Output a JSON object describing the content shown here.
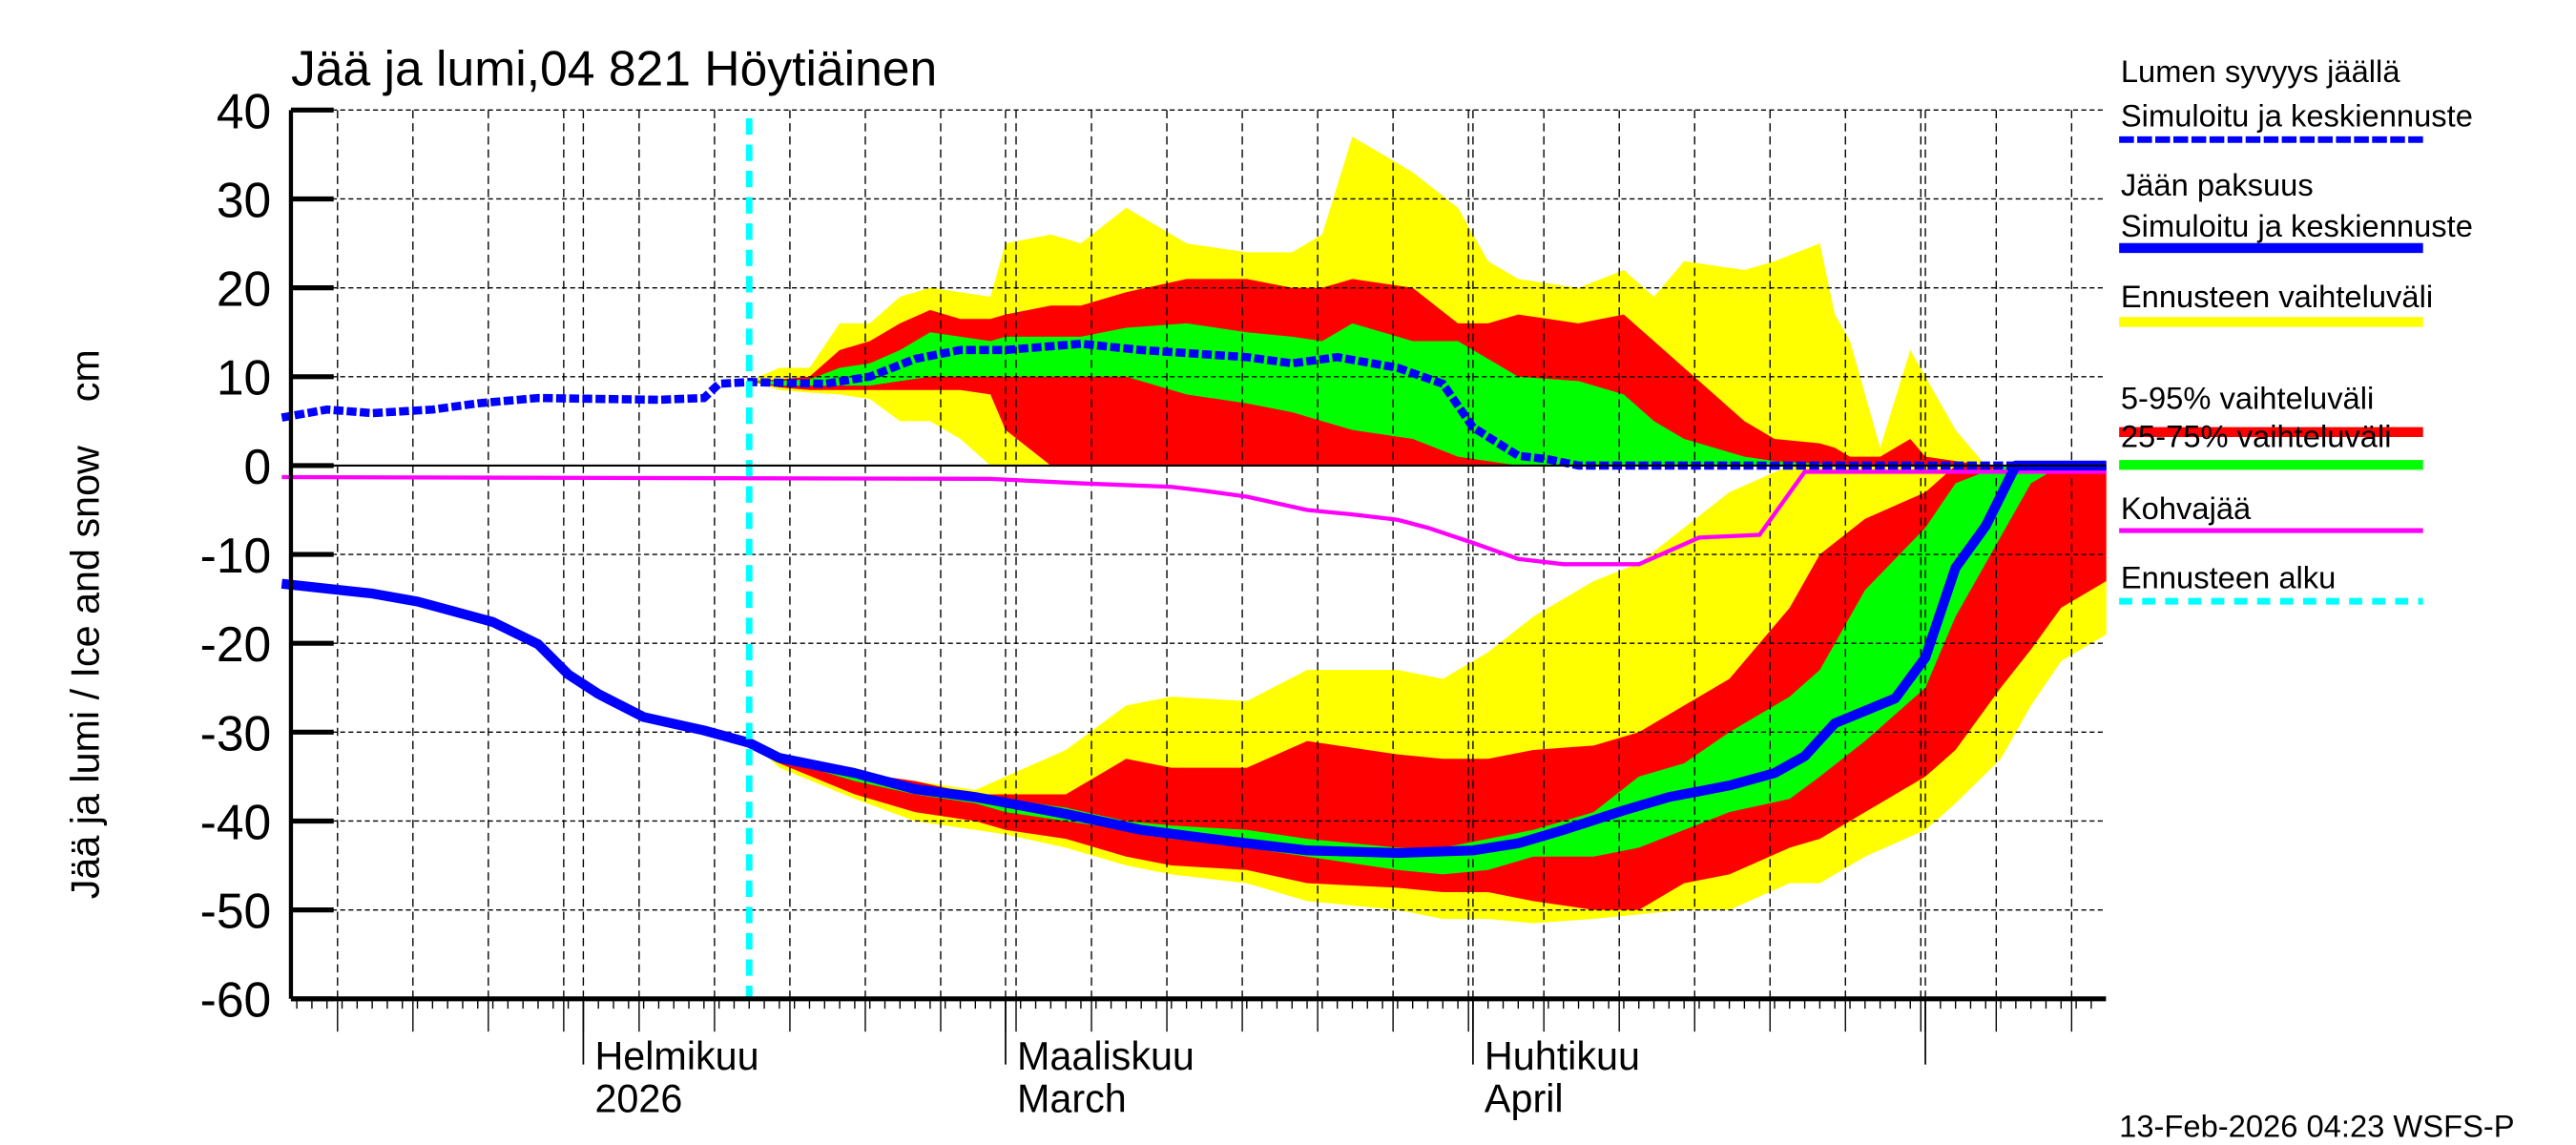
{
  "chart_data": {
    "type": "area",
    "title": "Jää ja lumi,04 821 Höytiäinen",
    "ylabel": "Jää ja lumi / Ice and snow    cm",
    "xlabel": "",
    "ylim": [
      -60,
      40
    ],
    "yticks": [
      "40",
      "30",
      "20",
      "10",
      "0",
      "-10",
      "-20",
      "-30",
      "-40",
      "-50",
      "-60"
    ],
    "xlim": [
      "2026-01-12",
      "2026-05-13"
    ],
    "x_month_labels": [
      {
        "date": "2026-02-01",
        "line1": "Helmikuu",
        "line2": "2026"
      },
      {
        "date": "2026-03-01",
        "line1": "Maaliskuu",
        "line2": "March"
      },
      {
        "date": "2026-04-01",
        "line1": "Huhtikuu",
        "line2": "April"
      }
    ],
    "grid": true,
    "legend_position": "right",
    "forecast_start": "2026-02-12",
    "colors": {
      "snow": "#0000ff",
      "ice": "#0000ff",
      "range": "#ffff00",
      "p5_95": "#ff0000",
      "p25_75": "#00ff00",
      "slush": "#ff00ff",
      "forecast_start": "#00ffff"
    },
    "snow_depth": {
      "name": "Lumen syvyys jäällä Simuloitu ja keskiennuste",
      "dates": [
        "2026-01-12",
        "2026-01-15",
        "2026-01-18",
        "2026-01-22",
        "2026-01-25",
        "2026-01-29",
        "2026-02-06",
        "2026-02-09",
        "2026-02-10",
        "2026-02-12",
        "2026-02-17",
        "2026-02-20",
        "2026-02-23",
        "2026-02-26",
        "2026-03-01",
        "2026-03-06",
        "2026-03-10",
        "2026-03-17",
        "2026-03-20",
        "2026-03-23",
        "2026-03-27",
        "2026-03-30",
        "2026-04-01",
        "2026-04-04",
        "2026-04-06",
        "2026-04-08",
        "2026-05-13"
      ],
      "values": [
        5.4,
        6.3,
        5.9,
        6.3,
        7.0,
        7.6,
        7.4,
        7.6,
        9.2,
        9.4,
        9.2,
        10,
        12,
        13,
        13,
        13.7,
        13,
        12.2,
        11.5,
        12.2,
        11,
        9.2,
        4.3,
        1.1,
        0.7,
        0,
        0
      ]
    },
    "ice_thickness": {
      "name": "Jään paksuus Simuloitu ja keskiennuste",
      "dates": [
        "2026-01-12",
        "2026-01-18",
        "2026-01-21",
        "2026-01-26",
        "2026-01-29",
        "2026-01-31",
        "2026-02-02",
        "2026-02-05",
        "2026-02-09",
        "2026-02-12",
        "2026-02-14",
        "2026-02-19",
        "2026-02-23",
        "2026-02-27",
        "2026-03-05",
        "2026-03-10",
        "2026-03-16",
        "2026-03-21",
        "2026-03-27",
        "2026-04-01",
        "2026-04-04",
        "2026-04-07",
        "2026-04-11",
        "2026-04-14",
        "2026-04-18",
        "2026-04-21",
        "2026-04-23",
        "2026-04-25",
        "2026-04-29",
        "2026-05-01",
        "2026-05-03",
        "2026-05-05",
        "2026-05-07",
        "2026-05-13"
      ],
      "values": [
        -13.3,
        -14.4,
        -15.3,
        -17.6,
        -20.1,
        -23.5,
        -25.7,
        -28.3,
        -29.8,
        -31.2,
        -32.9,
        -34.6,
        -36.4,
        -37.3,
        -39.2,
        -41,
        -42.3,
        -43.3,
        -43.6,
        -43.3,
        -42.5,
        -41,
        -38.8,
        -37.3,
        -36,
        -34.6,
        -32.7,
        -29,
        -26.2,
        -21.6,
        -11.5,
        -6.8,
        0,
        0
      ]
    },
    "slush_ice": {
      "name": "Kohvajää",
      "dates": [
        "2026-01-12",
        "2026-02-28",
        "2026-03-06",
        "2026-03-12",
        "2026-03-14",
        "2026-03-17",
        "2026-03-21",
        "2026-03-24",
        "2026-03-27",
        "2026-03-29",
        "2026-04-01",
        "2026-04-04",
        "2026-04-07",
        "2026-04-12",
        "2026-04-16",
        "2026-04-20",
        "2026-04-23",
        "2026-05-13"
      ],
      "values": [
        -1.3,
        -1.5,
        -2,
        -2.4,
        -2.8,
        -3.5,
        -5,
        -5.5,
        -6.1,
        -7,
        -8.7,
        -10.5,
        -11.1,
        -11.1,
        -8.1,
        -7.8,
        -0.7,
        -0.7
      ]
    },
    "snow_bands": {
      "dates": [
        "2026-02-12",
        "2026-02-14",
        "2026-02-16",
        "2026-02-18",
        "2026-02-20",
        "2026-02-22",
        "2026-02-24",
        "2026-02-26",
        "2026-02-28",
        "2026-03-01",
        "2026-03-04",
        "2026-03-06",
        "2026-03-09",
        "2026-03-13",
        "2026-03-17",
        "2026-03-20",
        "2026-03-22",
        "2026-03-24",
        "2026-03-28",
        "2026-03-31",
        "2026-04-02",
        "2026-04-04",
        "2026-04-08",
        "2026-04-11",
        "2026-04-13",
        "2026-04-15",
        "2026-04-19",
        "2026-04-21",
        "2026-04-24",
        "2026-04-25",
        "2026-04-26",
        "2026-04-28",
        "2026-04-30",
        "2026-05-01",
        "2026-05-03",
        "2026-05-05"
      ],
      "range_upper": [
        9.5,
        11,
        11,
        16,
        16,
        19,
        20,
        19.5,
        19,
        25,
        26,
        25,
        29,
        25,
        24,
        24,
        26,
        37,
        33,
        29,
        23,
        21,
        20,
        22,
        19,
        23,
        22,
        23,
        25,
        17,
        14,
        2,
        13,
        10,
        4,
        0
      ],
      "p95": [
        9.5,
        9.7,
        10,
        13,
        14,
        16,
        17.5,
        16.5,
        16.5,
        17,
        18,
        18,
        19.5,
        21,
        21,
        20,
        20,
        21,
        20,
        16,
        16,
        17,
        16,
        17,
        14,
        11,
        5,
        3,
        2.5,
        2,
        1,
        1,
        3,
        1,
        0.5,
        0
      ],
      "p75": [
        9.5,
        9.5,
        9.7,
        11,
        11.5,
        13,
        15,
        14.5,
        14,
        14.5,
        14.5,
        14.5,
        15.5,
        16,
        15,
        14.5,
        14,
        16,
        14,
        14,
        12,
        10,
        9.5,
        8,
        5,
        3,
        1,
        0.5,
        0.2,
        0,
        0,
        0,
        0,
        0,
        0,
        0
      ],
      "p25": [
        9.5,
        9,
        9,
        9,
        9,
        9.5,
        10,
        10,
        10,
        10,
        10,
        10,
        10,
        8,
        7,
        6,
        5,
        4,
        3,
        1,
        0.5,
        0,
        0,
        0,
        0,
        0,
        0,
        0,
        0,
        0,
        0,
        0,
        0,
        0,
        0,
        0
      ],
      "p5": [
        9.5,
        8.8,
        8.5,
        8.5,
        8.5,
        8.5,
        8.5,
        8.5,
        8,
        4,
        0,
        0,
        0,
        0,
        0,
        0,
        0,
        0,
        0,
        0,
        0,
        0,
        0,
        0,
        0,
        0,
        0,
        0,
        0,
        0,
        0,
        0,
        0,
        0,
        0,
        0
      ],
      "range_lower": [
        9.5,
        8.5,
        8.2,
        8,
        7.5,
        5,
        5,
        3,
        0,
        0,
        0,
        0,
        0,
        0,
        0,
        0,
        0,
        0,
        0,
        0,
        0,
        0,
        0,
        0,
        0,
        0,
        0,
        0,
        0,
        0,
        0,
        0,
        0,
        0,
        0,
        0
      ]
    },
    "ice_bands": {
      "dates": [
        "2026-02-12",
        "2026-02-14",
        "2026-02-19",
        "2026-02-23",
        "2026-02-27",
        "2026-03-01",
        "2026-03-05",
        "2026-03-09",
        "2026-03-12",
        "2026-03-17",
        "2026-03-21",
        "2026-03-27",
        "2026-03-30",
        "2026-04-02",
        "2026-04-05",
        "2026-04-09",
        "2026-04-12",
        "2026-04-15",
        "2026-04-18",
        "2026-04-22",
        "2026-04-24",
        "2026-04-27",
        "2026-05-01",
        "2026-05-03",
        "2026-05-06",
        "2026-05-08",
        "2026-05-10",
        "2026-05-13"
      ],
      "range_upper": [
        -31,
        -33,
        -34.5,
        -35.5,
        -36.5,
        -35,
        -32,
        -27,
        -26,
        -26.5,
        -23,
        -23,
        -24,
        -21,
        -17,
        -13,
        -11,
        -7,
        -3,
        0,
        0,
        0,
        0,
        0,
        0,
        0,
        0,
        0
      ],
      "p95": [
        -31,
        -33,
        -34.5,
        -35.5,
        -37,
        -37,
        -37,
        -33,
        -34,
        -34,
        -31,
        -32.5,
        -33,
        -33,
        -32,
        -31.5,
        -30,
        -27,
        -24,
        -16,
        -10,
        -6,
        -3,
        0,
        0,
        0,
        0,
        0
      ],
      "p75": [
        -31,
        -33,
        -35,
        -36,
        -37.5,
        -37.5,
        -38.5,
        -40,
        -40.5,
        -41,
        -42,
        -43,
        -43,
        -42,
        -41,
        -39,
        -35,
        -33.5,
        -30,
        -26,
        -23,
        -14,
        -7,
        -2,
        0,
        0,
        0,
        0
      ],
      "p25": [
        -31,
        -33,
        -35.5,
        -37,
        -38,
        -39,
        -40,
        -41,
        -42,
        -43,
        -44,
        -45.5,
        -46,
        -45.5,
        -44,
        -44,
        -43,
        -41,
        -39,
        -37.5,
        -35,
        -31,
        -25,
        -17,
        -8,
        -2,
        0,
        0
      ],
      "p5": [
        -31,
        -33.5,
        -37,
        -39,
        -40,
        -41,
        -42,
        -44,
        -45,
        -45.5,
        -47,
        -47.5,
        -48,
        -48,
        -49,
        -50,
        -50,
        -47,
        -46,
        -43,
        -42,
        -39,
        -35,
        -32,
        -25,
        -20.7,
        -16,
        -13
      ],
      "range_lower": [
        -31,
        -34,
        -37.5,
        -40,
        -41,
        -41.5,
        -43,
        -45,
        -46,
        -47,
        -49,
        -50,
        -51,
        -51,
        -51.5,
        -51,
        -50.5,
        -50,
        -50,
        -47,
        -47,
        -44,
        -41,
        -38,
        -33,
        -27,
        -22,
        -19
      ]
    },
    "legend": [
      {
        "line1": "Lumen syvyys jäällä",
        "line2": "Simuloitu ja keskiennuste",
        "color": "#0000ff",
        "style": "dashed"
      },
      {
        "line1": "Jään paksuus",
        "line2": "Simuloitu ja keskiennuste",
        "color": "#0000ff",
        "style": "solid-thick"
      },
      {
        "line1": "Ennusteen vaihteluväli",
        "color": "#ffff00",
        "style": "band"
      },
      {
        "line1": "5-95% vaihteluväli",
        "color": "#ff0000",
        "style": "band"
      },
      {
        "line1": "25-75% vaihteluväli",
        "color": "#00ff00",
        "style": "band"
      },
      {
        "line1": "Kohvajää",
        "color": "#ff00ff",
        "style": "solid"
      },
      {
        "line1": "Ennusteen alku",
        "color": "#00ffff",
        "style": "dashed"
      }
    ],
    "timestamp": "13-Feb-2026 04:23 WSFS-P"
  }
}
